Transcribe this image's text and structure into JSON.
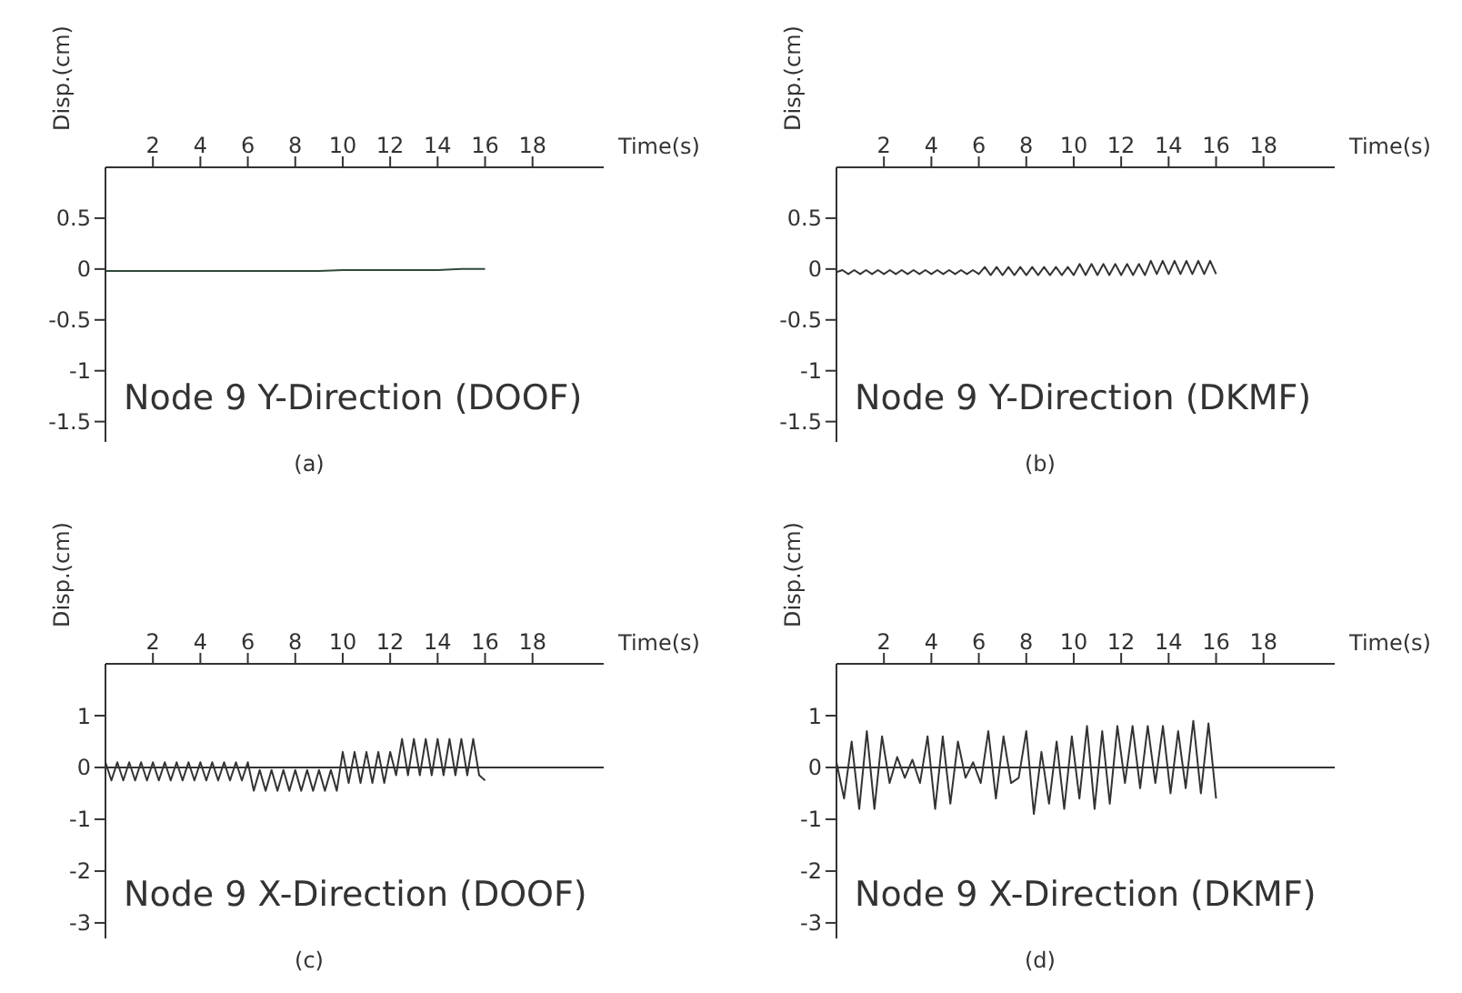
{
  "chart_data": [
    {
      "type": "line",
      "title": "Node 9 Y-Direction (DOOF)",
      "subtitle": "(a)",
      "xlabel": "Time(s)",
      "ylabel": "Disp.(cm)",
      "xlim": [
        0,
        21
      ],
      "xticks": [
        2,
        4,
        6,
        8,
        10,
        12,
        14,
        16,
        18
      ],
      "ylim": [
        -1.7,
        1
      ],
      "yticks": [
        0.5,
        0,
        -0.5,
        -1,
        -1.5
      ],
      "x": [
        0,
        1,
        2,
        3,
        4,
        5,
        6,
        7,
        8,
        9,
        10,
        11,
        12,
        13,
        14,
        15,
        16
      ],
      "series": [
        {
          "color": "#2f4a3a",
          "values": [
            -0.02,
            -0.02,
            -0.02,
            -0.02,
            -0.02,
            -0.02,
            -0.02,
            -0.02,
            -0.02,
            -0.02,
            -0.01,
            -0.01,
            -0.01,
            -0.01,
            -0.01,
            0,
            0
          ]
        }
      ]
    },
    {
      "type": "line",
      "title": "Node 9 Y-Direction (DKMF)",
      "subtitle": "(b)",
      "xlabel": "Time(s)",
      "ylabel": "Disp.(cm)",
      "xlim": [
        0,
        21
      ],
      "xticks": [
        2,
        4,
        6,
        8,
        10,
        12,
        14,
        16,
        18
      ],
      "ylim": [
        -1.7,
        1
      ],
      "yticks": [
        0.5,
        0,
        -0.5,
        -1,
        -1.5
      ],
      "x": [
        0,
        0.25,
        0.5,
        0.75,
        1,
        1.25,
        1.5,
        1.75,
        2,
        2.25,
        2.5,
        2.75,
        3,
        3.25,
        3.5,
        3.75,
        4,
        4.25,
        4.5,
        4.75,
        5,
        5.25,
        5.5,
        5.75,
        6,
        6.25,
        6.5,
        6.75,
        7,
        7.25,
        7.5,
        7.75,
        8,
        8.25,
        8.5,
        8.75,
        9,
        9.25,
        9.5,
        9.75,
        10,
        10.25,
        10.5,
        10.75,
        11,
        11.25,
        11.5,
        11.75,
        12,
        12.25,
        12.5,
        12.75,
        13,
        13.25,
        13.5,
        13.75,
        14,
        14.25,
        14.5,
        14.75,
        15,
        15.25,
        15.5,
        15.75,
        16
      ],
      "series": [
        {
          "color": "#333333",
          "values": [
            -0.03,
            -0.01,
            -0.05,
            -0.01,
            -0.05,
            -0.01,
            -0.05,
            -0.01,
            -0.05,
            -0.01,
            -0.05,
            -0.01,
            -0.05,
            -0.01,
            -0.05,
            -0.01,
            -0.05,
            -0.01,
            -0.05,
            -0.01,
            -0.05,
            -0.01,
            -0.05,
            -0.01,
            -0.05,
            0.02,
            -0.06,
            0.02,
            -0.06,
            0.02,
            -0.06,
            0.02,
            -0.06,
            0.02,
            -0.06,
            0.02,
            -0.06,
            0.02,
            -0.06,
            0.02,
            -0.06,
            0.05,
            -0.06,
            0.05,
            -0.06,
            0.05,
            -0.06,
            0.05,
            -0.06,
            0.05,
            -0.06,
            0.05,
            -0.06,
            0.08,
            -0.05,
            0.08,
            -0.05,
            0.08,
            -0.05,
            0.08,
            -0.05,
            0.08,
            -0.05,
            0.08,
            -0.05
          ]
        }
      ]
    },
    {
      "type": "line",
      "title": "Node 9 X-Direction (DOOF)",
      "subtitle": "(c)",
      "xlabel": "Time(s)",
      "ylabel": "Disp.(cm)",
      "xlim": [
        0,
        21
      ],
      "xticks": [
        2,
        4,
        6,
        8,
        10,
        12,
        14,
        16,
        18
      ],
      "ylim": [
        -3.3,
        2
      ],
      "yticks": [
        1,
        0,
        -1,
        -2,
        -3
      ],
      "ref_lines": [
        {
          "axis": "y",
          "value": 0
        }
      ],
      "x": [
        0,
        0.25,
        0.5,
        0.75,
        1,
        1.25,
        1.5,
        1.75,
        2,
        2.25,
        2.5,
        2.75,
        3,
        3.25,
        3.5,
        3.75,
        4,
        4.25,
        4.5,
        4.75,
        5,
        5.25,
        5.5,
        5.75,
        6,
        6.25,
        6.5,
        6.75,
        7,
        7.25,
        7.5,
        7.75,
        8,
        8.25,
        8.5,
        8.75,
        9,
        9.25,
        9.5,
        9.75,
        10,
        10.25,
        10.5,
        10.75,
        11,
        11.25,
        11.5,
        11.75,
        12,
        12.25,
        12.5,
        12.75,
        13,
        13.25,
        13.5,
        13.75,
        14,
        14.25,
        14.5,
        14.75,
        15,
        15.25,
        15.5,
        15.75,
        16
      ],
      "series": [
        {
          "color": "#333333",
          "values": [
            0.1,
            -0.25,
            0.1,
            -0.25,
            0.1,
            -0.25,
            0.1,
            -0.25,
            0.1,
            -0.25,
            0.1,
            -0.25,
            0.1,
            -0.25,
            0.1,
            -0.25,
            0.1,
            -0.25,
            0.1,
            -0.25,
            0.1,
            -0.25,
            0.1,
            -0.25,
            0.1,
            -0.45,
            -0.05,
            -0.45,
            -0.05,
            -0.45,
            -0.05,
            -0.45,
            -0.05,
            -0.45,
            -0.05,
            -0.45,
            -0.05,
            -0.45,
            -0.05,
            -0.45,
            0.3,
            -0.3,
            0.3,
            -0.3,
            0.3,
            -0.3,
            0.3,
            -0.3,
            0.3,
            -0.15,
            0.55,
            -0.15,
            0.55,
            -0.15,
            0.55,
            -0.15,
            0.55,
            -0.15,
            0.55,
            -0.15,
            0.55,
            -0.15,
            0.55,
            -0.15,
            -0.25
          ]
        }
      ]
    },
    {
      "type": "line",
      "title": "Node 9 X-Direction (DKMF)",
      "subtitle": "(d)",
      "xlabel": "Time(s)",
      "ylabel": "Disp.(cm)",
      "xlim": [
        0,
        21
      ],
      "xticks": [
        2,
        4,
        6,
        8,
        10,
        12,
        14,
        16,
        18
      ],
      "ylim": [
        -3.3,
        2
      ],
      "yticks": [
        1,
        0,
        -1,
        -2,
        -3
      ],
      "ref_lines": [
        {
          "axis": "y",
          "value": 0
        }
      ],
      "x": [
        0,
        0.32,
        0.64,
        0.96,
        1.28,
        1.6,
        1.92,
        2.24,
        2.56,
        2.88,
        3.2,
        3.52,
        3.84,
        4.16,
        4.48,
        4.8,
        5.12,
        5.44,
        5.76,
        6.08,
        6.4,
        6.72,
        7.04,
        7.36,
        7.68,
        8,
        8.32,
        8.64,
        8.96,
        9.28,
        9.6,
        9.92,
        10.24,
        10.56,
        10.88,
        11.2,
        11.52,
        11.84,
        12.16,
        12.48,
        12.8,
        13.12,
        13.44,
        13.76,
        14.08,
        14.4,
        14.72,
        15.04,
        15.36,
        15.68,
        16
      ],
      "series": [
        {
          "color": "#333333",
          "values": [
            0.1,
            -0.6,
            0.5,
            -0.8,
            0.7,
            -0.8,
            0.6,
            -0.3,
            0.2,
            -0.2,
            0.15,
            -0.3,
            0.6,
            -0.8,
            0.6,
            -0.7,
            0.5,
            -0.2,
            0.1,
            -0.3,
            0.7,
            -0.6,
            0.6,
            -0.3,
            -0.2,
            0.7,
            -0.9,
            0.3,
            -0.7,
            0.5,
            -0.8,
            0.6,
            -0.6,
            0.8,
            -0.8,
            0.7,
            -0.7,
            0.8,
            -0.3,
            0.8,
            -0.4,
            0.8,
            -0.3,
            0.8,
            -0.5,
            0.7,
            -0.4,
            0.9,
            -0.5,
            0.85,
            -0.6
          ]
        }
      ]
    }
  ]
}
